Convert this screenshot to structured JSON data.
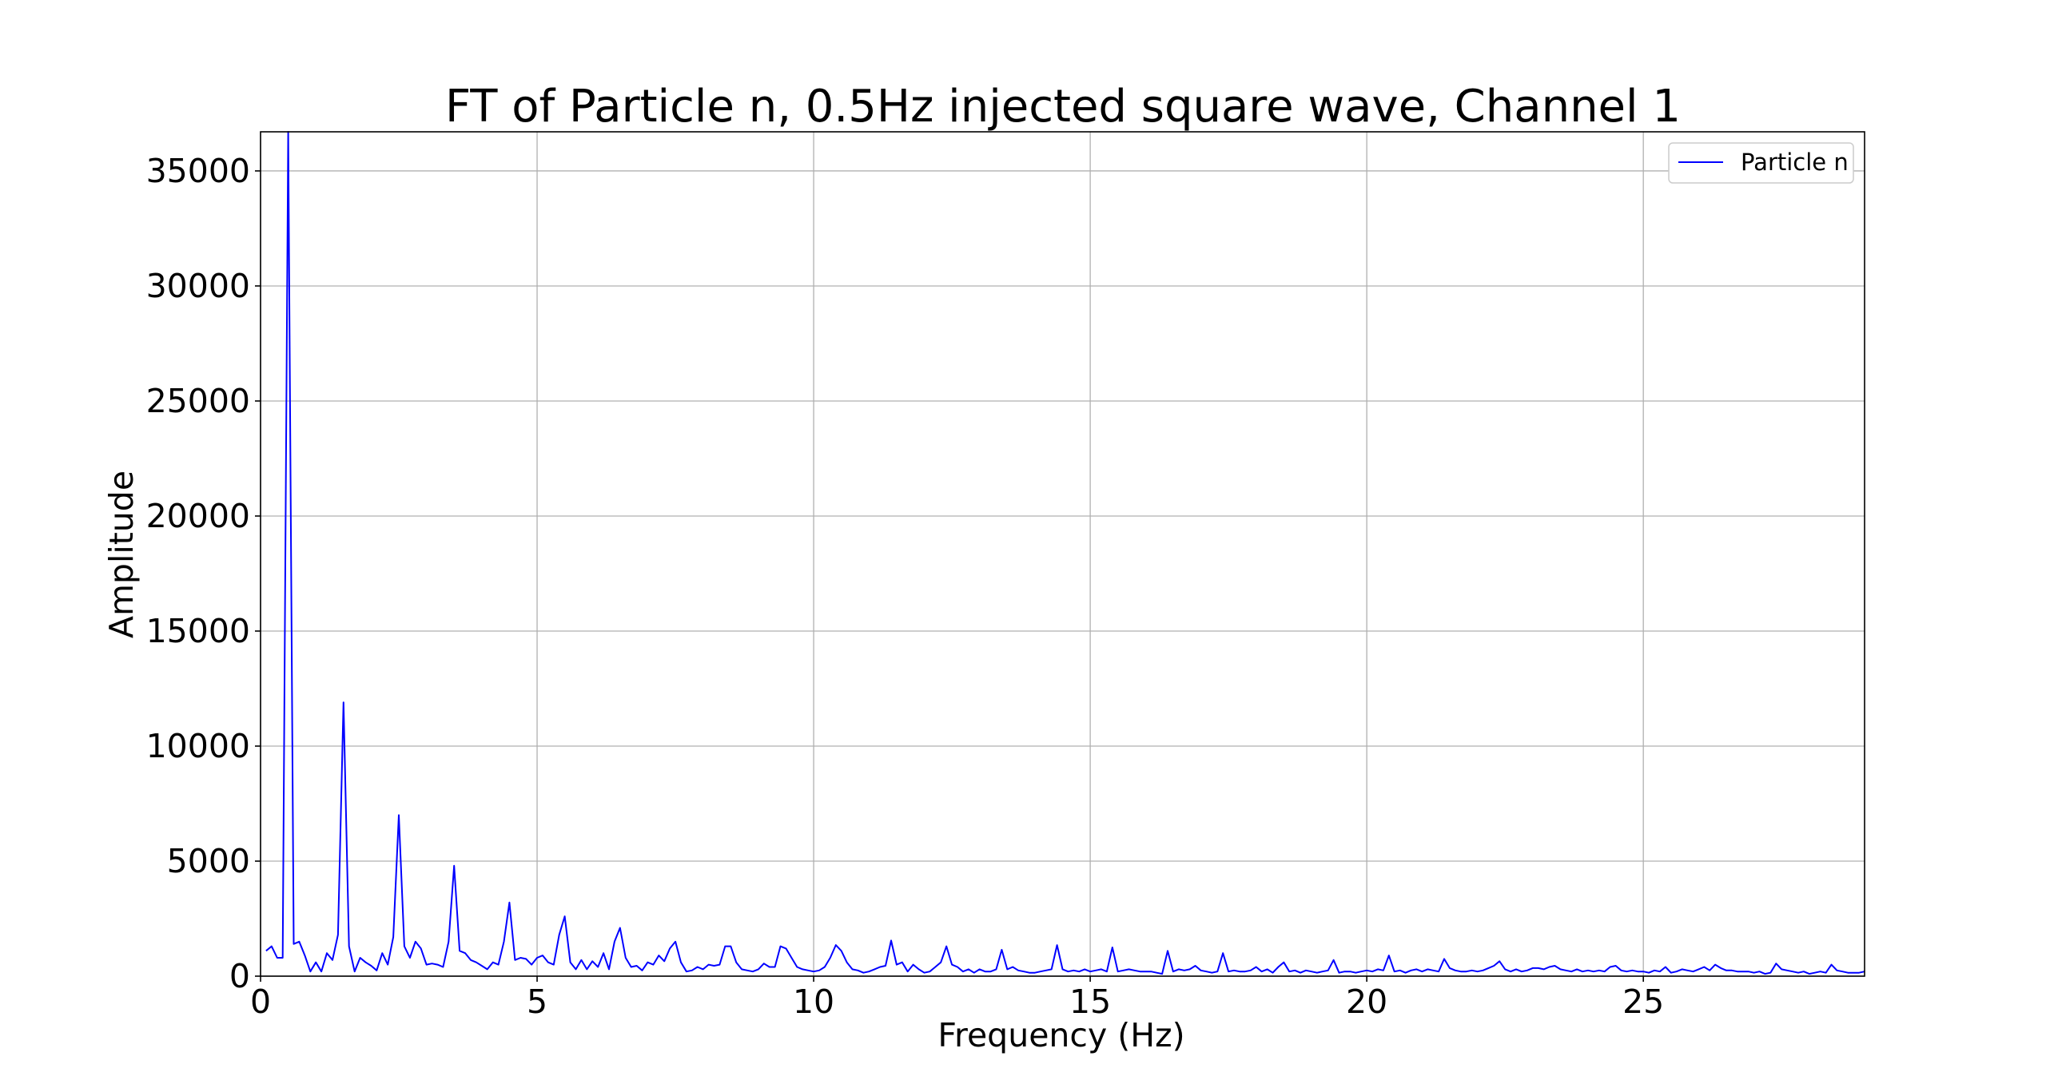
{
  "chart_data": {
    "type": "line",
    "title": "FT of Particle n, 0.5Hz injected square wave, Channel 1",
    "xlabel": "Frequency (Hz)",
    "ylabel": "Amplitude",
    "xlim": [
      0,
      29
    ],
    "ylim": [
      0,
      36700
    ],
    "xticks": [
      0,
      5,
      10,
      15,
      20,
      25
    ],
    "yticks": [
      0,
      5000,
      10000,
      15000,
      20000,
      25000,
      30000,
      35000
    ],
    "grid": true,
    "legend_position": "top-right",
    "series": [
      {
        "name": "Particle n",
        "color": "#0000ff",
        "points": [
          [
            0.1,
            1100
          ],
          [
            0.2,
            1300
          ],
          [
            0.3,
            800
          ],
          [
            0.4,
            800
          ],
          [
            0.5,
            36700
          ],
          [
            0.6,
            1400
          ],
          [
            0.7,
            1500
          ],
          [
            0.8,
            900
          ],
          [
            0.9,
            200
          ],
          [
            1.0,
            600
          ],
          [
            1.1,
            200
          ],
          [
            1.2,
            1000
          ],
          [
            1.3,
            700
          ],
          [
            1.4,
            1800
          ],
          [
            1.5,
            11900
          ],
          [
            1.6,
            1300
          ],
          [
            1.7,
            200
          ],
          [
            1.8,
            800
          ],
          [
            1.9,
            600
          ],
          [
            2.0,
            450
          ],
          [
            2.1,
            250
          ],
          [
            2.2,
            1000
          ],
          [
            2.3,
            500
          ],
          [
            2.4,
            1700
          ],
          [
            2.5,
            7000
          ],
          [
            2.6,
            1300
          ],
          [
            2.7,
            800
          ],
          [
            2.8,
            1500
          ],
          [
            2.9,
            1200
          ],
          [
            3.0,
            500
          ],
          [
            3.1,
            550
          ],
          [
            3.2,
            500
          ],
          [
            3.3,
            400
          ],
          [
            3.4,
            1500
          ],
          [
            3.5,
            4800
          ],
          [
            3.6,
            1100
          ],
          [
            3.7,
            1000
          ],
          [
            3.8,
            700
          ],
          [
            3.9,
            600
          ],
          [
            4.0,
            450
          ],
          [
            4.1,
            300
          ],
          [
            4.2,
            600
          ],
          [
            4.3,
            500
          ],
          [
            4.4,
            1500
          ],
          [
            4.5,
            3200
          ],
          [
            4.6,
            700
          ],
          [
            4.7,
            800
          ],
          [
            4.8,
            750
          ],
          [
            4.9,
            500
          ],
          [
            5.0,
            800
          ],
          [
            5.1,
            900
          ],
          [
            5.2,
            600
          ],
          [
            5.3,
            500
          ],
          [
            5.4,
            1800
          ],
          [
            5.5,
            2600
          ],
          [
            5.6,
            600
          ],
          [
            5.7,
            300
          ],
          [
            5.8,
            700
          ],
          [
            5.9,
            300
          ],
          [
            6.0,
            650
          ],
          [
            6.1,
            400
          ],
          [
            6.2,
            1000
          ],
          [
            6.3,
            300
          ],
          [
            6.4,
            1500
          ],
          [
            6.5,
            2100
          ],
          [
            6.6,
            800
          ],
          [
            6.7,
            400
          ],
          [
            6.8,
            450
          ],
          [
            6.9,
            250
          ],
          [
            7.0,
            600
          ],
          [
            7.1,
            500
          ],
          [
            7.2,
            900
          ],
          [
            7.3,
            650
          ],
          [
            7.4,
            1200
          ],
          [
            7.5,
            1500
          ],
          [
            7.6,
            600
          ],
          [
            7.7,
            200
          ],
          [
            7.8,
            250
          ],
          [
            7.9,
            400
          ],
          [
            8.0,
            300
          ],
          [
            8.1,
            500
          ],
          [
            8.2,
            450
          ],
          [
            8.3,
            500
          ],
          [
            8.4,
            1300
          ],
          [
            8.5,
            1300
          ],
          [
            8.6,
            600
          ],
          [
            8.7,
            300
          ],
          [
            8.8,
            250
          ],
          [
            8.9,
            200
          ],
          [
            9.0,
            300
          ],
          [
            9.1,
            550
          ],
          [
            9.2,
            400
          ],
          [
            9.3,
            400
          ],
          [
            9.4,
            1300
          ],
          [
            9.5,
            1200
          ],
          [
            9.6,
            800
          ],
          [
            9.7,
            400
          ],
          [
            9.8,
            300
          ],
          [
            9.9,
            250
          ],
          [
            10.0,
            200
          ],
          [
            10.1,
            250
          ],
          [
            10.2,
            400
          ],
          [
            10.3,
            800
          ],
          [
            10.4,
            1350
          ],
          [
            10.5,
            1100
          ],
          [
            10.6,
            600
          ],
          [
            10.7,
            300
          ],
          [
            10.8,
            250
          ],
          [
            10.9,
            150
          ],
          [
            11.0,
            200
          ],
          [
            11.1,
            300
          ],
          [
            11.2,
            400
          ],
          [
            11.3,
            450
          ],
          [
            11.4,
            1550
          ],
          [
            11.5,
            500
          ],
          [
            11.6,
            600
          ],
          [
            11.7,
            200
          ],
          [
            11.8,
            500
          ],
          [
            11.9,
            300
          ],
          [
            12.0,
            150
          ],
          [
            12.1,
            200
          ],
          [
            12.2,
            400
          ],
          [
            12.3,
            600
          ],
          [
            12.4,
            1300
          ],
          [
            12.5,
            500
          ],
          [
            12.6,
            400
          ],
          [
            12.7,
            200
          ],
          [
            12.8,
            300
          ],
          [
            12.9,
            150
          ],
          [
            13.0,
            300
          ],
          [
            13.1,
            200
          ],
          [
            13.2,
            200
          ],
          [
            13.3,
            300
          ],
          [
            13.4,
            1150
          ],
          [
            13.5,
            300
          ],
          [
            13.6,
            400
          ],
          [
            13.7,
            250
          ],
          [
            13.8,
            200
          ],
          [
            13.9,
            150
          ],
          [
            14.0,
            150
          ],
          [
            14.1,
            200
          ],
          [
            14.2,
            250
          ],
          [
            14.3,
            300
          ],
          [
            14.4,
            1350
          ],
          [
            14.5,
            300
          ],
          [
            14.6,
            200
          ],
          [
            14.7,
            250
          ],
          [
            14.8,
            200
          ],
          [
            14.9,
            300
          ],
          [
            15.0,
            200
          ],
          [
            15.1,
            250
          ],
          [
            15.2,
            300
          ],
          [
            15.3,
            200
          ],
          [
            15.4,
            1250
          ],
          [
            15.5,
            200
          ],
          [
            15.6,
            250
          ],
          [
            15.7,
            300
          ],
          [
            15.8,
            250
          ],
          [
            15.9,
            200
          ],
          [
            16.0,
            200
          ],
          [
            16.1,
            200
          ],
          [
            16.2,
            150
          ],
          [
            16.3,
            100
          ],
          [
            16.4,
            1100
          ],
          [
            16.5,
            200
          ],
          [
            16.6,
            300
          ],
          [
            16.7,
            250
          ],
          [
            16.8,
            300
          ],
          [
            16.9,
            450
          ],
          [
            17.0,
            250
          ],
          [
            17.1,
            200
          ],
          [
            17.2,
            150
          ],
          [
            17.3,
            200
          ],
          [
            17.4,
            1000
          ],
          [
            17.5,
            200
          ],
          [
            17.6,
            250
          ],
          [
            17.7,
            200
          ],
          [
            17.8,
            200
          ],
          [
            17.9,
            250
          ],
          [
            18.0,
            400
          ],
          [
            18.1,
            200
          ],
          [
            18.2,
            300
          ],
          [
            18.3,
            150
          ],
          [
            18.4,
            400
          ],
          [
            18.5,
            600
          ],
          [
            18.6,
            200
          ],
          [
            18.7,
            250
          ],
          [
            18.8,
            150
          ],
          [
            18.9,
            250
          ],
          [
            19.0,
            200
          ],
          [
            19.1,
            150
          ],
          [
            19.2,
            200
          ],
          [
            19.3,
            250
          ],
          [
            19.4,
            700
          ],
          [
            19.5,
            150
          ],
          [
            19.6,
            200
          ],
          [
            19.7,
            200
          ],
          [
            19.8,
            150
          ],
          [
            19.9,
            200
          ],
          [
            20.0,
            250
          ],
          [
            20.1,
            200
          ],
          [
            20.2,
            300
          ],
          [
            20.3,
            250
          ],
          [
            20.4,
            900
          ],
          [
            20.5,
            200
          ],
          [
            20.6,
            250
          ],
          [
            20.7,
            150
          ],
          [
            20.8,
            250
          ],
          [
            20.9,
            300
          ],
          [
            21.0,
            200
          ],
          [
            21.1,
            300
          ],
          [
            21.2,
            250
          ],
          [
            21.3,
            200
          ],
          [
            21.4,
            750
          ],
          [
            21.5,
            350
          ],
          [
            21.6,
            250
          ],
          [
            21.7,
            200
          ],
          [
            21.8,
            200
          ],
          [
            21.9,
            250
          ],
          [
            22.0,
            200
          ],
          [
            22.1,
            250
          ],
          [
            22.2,
            350
          ],
          [
            22.3,
            450
          ],
          [
            22.4,
            650
          ],
          [
            22.5,
            300
          ],
          [
            22.6,
            200
          ],
          [
            22.7,
            300
          ],
          [
            22.8,
            200
          ],
          [
            22.9,
            250
          ],
          [
            23.0,
            350
          ],
          [
            23.1,
            350
          ],
          [
            23.2,
            300
          ],
          [
            23.3,
            400
          ],
          [
            23.4,
            450
          ],
          [
            23.5,
            300
          ],
          [
            23.6,
            250
          ],
          [
            23.7,
            200
          ],
          [
            23.8,
            300
          ],
          [
            23.9,
            200
          ],
          [
            24.0,
            250
          ],
          [
            24.1,
            200
          ],
          [
            24.2,
            250
          ],
          [
            24.3,
            200
          ],
          [
            24.4,
            400
          ],
          [
            24.5,
            450
          ],
          [
            24.6,
            250
          ],
          [
            24.7,
            200
          ],
          [
            24.8,
            250
          ],
          [
            24.9,
            200
          ],
          [
            25.0,
            200
          ],
          [
            25.1,
            150
          ],
          [
            25.2,
            250
          ],
          [
            25.3,
            200
          ],
          [
            25.4,
            400
          ],
          [
            25.5,
            150
          ],
          [
            25.6,
            200
          ],
          [
            25.7,
            300
          ],
          [
            25.8,
            250
          ],
          [
            25.9,
            200
          ],
          [
            26.0,
            300
          ],
          [
            26.1,
            400
          ],
          [
            26.2,
            250
          ],
          [
            26.3,
            500
          ],
          [
            26.4,
            350
          ],
          [
            26.5,
            250
          ],
          [
            26.6,
            250
          ],
          [
            26.7,
            200
          ],
          [
            26.8,
            200
          ],
          [
            26.9,
            200
          ],
          [
            27.0,
            150
          ],
          [
            27.1,
            200
          ],
          [
            27.2,
            100
          ],
          [
            27.3,
            150
          ],
          [
            27.4,
            550
          ],
          [
            27.5,
            300
          ],
          [
            27.6,
            250
          ],
          [
            27.7,
            200
          ],
          [
            27.8,
            150
          ],
          [
            27.9,
            200
          ],
          [
            28.0,
            100
          ],
          [
            28.1,
            150
          ],
          [
            28.2,
            200
          ],
          [
            28.3,
            150
          ],
          [
            28.4,
            500
          ],
          [
            28.5,
            250
          ],
          [
            28.6,
            200
          ],
          [
            28.7,
            150
          ],
          [
            28.8,
            150
          ],
          [
            28.9,
            150
          ],
          [
            29.0,
            200
          ]
        ]
      }
    ]
  }
}
